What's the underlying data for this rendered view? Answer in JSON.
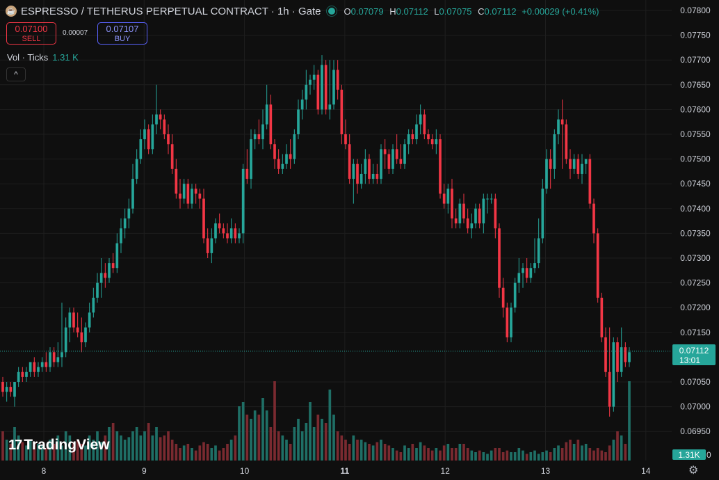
{
  "header": {
    "symbol": "ESPRESSO / TETHERUS PERPETUAL CONTRACT · 1h · Gate",
    "logo_icon": "espresso-coin-icon",
    "o_label": "O",
    "o": "0.07079",
    "h_label": "H",
    "h": "0.07112",
    "l_label": "L",
    "l": "0.07075",
    "c_label": "C",
    "c": "0.07112",
    "change": "+0.00029 (+0.41%)"
  },
  "trade": {
    "sell_price": "0.07100",
    "sell_label": "SELL",
    "spread": "0.00007",
    "buy_price": "0.07107",
    "buy_label": "BUY"
  },
  "volume": {
    "label": "Vol · Ticks",
    "value": "1.31 K"
  },
  "collapse_glyph": "^",
  "brand": {
    "text": "TradingView",
    "mark": "17"
  },
  "settings_icon": "gear-icon",
  "colors": {
    "up": "#26a69a",
    "down": "#f23645",
    "bg": "#0f0f0f"
  },
  "chart_data": {
    "type": "candlestick",
    "y_axis_ticks": [
      "0.07800",
      "0.07750",
      "0.07700",
      "0.07650",
      "0.07600",
      "0.07550",
      "0.07500",
      "0.07450",
      "0.07400",
      "0.07350",
      "0.07300",
      "0.07250",
      "0.07200",
      "0.07150",
      "0.07050",
      "0.07000",
      "0.06950"
    ],
    "ylim": [
      0.0693,
      0.0781
    ],
    "x_axis_ticks": [
      "8",
      "9",
      "10",
      "11",
      "12",
      "13",
      "14"
    ],
    "x_bold_tick": "11",
    "last_price": "0.07112",
    "countdown": "13:01",
    "volume_last": "1.31K",
    "volume_zero_label": "0",
    "ohlc": [
      [
        0.0705,
        0.0706,
        0.0702,
        0.0703
      ],
      [
        0.0703,
        0.0705,
        0.0701,
        0.0704
      ],
      [
        0.0704,
        0.0705,
        0.0702,
        0.0703
      ],
      [
        0.0702,
        0.0705,
        0.07,
        0.0705
      ],
      [
        0.0705,
        0.0708,
        0.0704,
        0.0707
      ],
      [
        0.0707,
        0.0708,
        0.0705,
        0.0706
      ],
      [
        0.0706,
        0.0708,
        0.0705,
        0.0707
      ],
      [
        0.0707,
        0.0709,
        0.0706,
        0.0709
      ],
      [
        0.0709,
        0.071,
        0.0706,
        0.0707
      ],
      [
        0.0707,
        0.0709,
        0.0706,
        0.0708
      ],
      [
        0.0708,
        0.071,
        0.0707,
        0.0709
      ],
      [
        0.0709,
        0.0711,
        0.0707,
        0.0708
      ],
      [
        0.0708,
        0.0712,
        0.0707,
        0.0711
      ],
      [
        0.0711,
        0.0712,
        0.0708,
        0.0709
      ],
      [
        0.0709,
        0.0713,
        0.0708,
        0.071
      ],
      [
        0.071,
        0.0721,
        0.0708,
        0.0711
      ],
      [
        0.0711,
        0.0718,
        0.071,
        0.0716
      ],
      [
        0.0716,
        0.072,
        0.0713,
        0.0719
      ],
      [
        0.0719,
        0.072,
        0.0715,
        0.0716
      ],
      [
        0.0716,
        0.0719,
        0.0714,
        0.0715
      ],
      [
        0.0715,
        0.0718,
        0.0711,
        0.0713
      ],
      [
        0.0713,
        0.0717,
        0.0712,
        0.0716
      ],
      [
        0.0716,
        0.0721,
        0.0715,
        0.0719
      ],
      [
        0.0719,
        0.0724,
        0.0718,
        0.0722
      ],
      [
        0.0722,
        0.0727,
        0.0721,
        0.0725
      ],
      [
        0.0725,
        0.073,
        0.0722,
        0.0727
      ],
      [
        0.0727,
        0.0729,
        0.0724,
        0.0726
      ],
      [
        0.0726,
        0.073,
        0.0725,
        0.0729
      ],
      [
        0.0729,
        0.0731,
        0.0727,
        0.0728
      ],
      [
        0.0728,
        0.0735,
        0.0727,
        0.0733
      ],
      [
        0.0733,
        0.0738,
        0.0731,
        0.0736
      ],
      [
        0.0736,
        0.074,
        0.0734,
        0.0738
      ],
      [
        0.0738,
        0.0742,
        0.0736,
        0.074
      ],
      [
        0.074,
        0.0749,
        0.0739,
        0.0746
      ],
      [
        0.0746,
        0.0752,
        0.0745,
        0.075
      ],
      [
        0.075,
        0.0756,
        0.0749,
        0.0754
      ],
      [
        0.0754,
        0.0758,
        0.0752,
        0.0756
      ],
      [
        0.0756,
        0.0757,
        0.0751,
        0.0752
      ],
      [
        0.0752,
        0.0759,
        0.0751,
        0.0757
      ],
      [
        0.0757,
        0.0765,
        0.0755,
        0.0759
      ],
      [
        0.0759,
        0.076,
        0.0756,
        0.0758
      ],
      [
        0.0758,
        0.0759,
        0.0754,
        0.0755
      ],
      [
        0.0755,
        0.0757,
        0.0751,
        0.0753
      ],
      [
        0.0753,
        0.0755,
        0.0747,
        0.0748
      ],
      [
        0.0748,
        0.075,
        0.0742,
        0.0743
      ],
      [
        0.0743,
        0.0746,
        0.074,
        0.0742
      ],
      [
        0.0742,
        0.0746,
        0.0741,
        0.0745
      ],
      [
        0.0745,
        0.0746,
        0.074,
        0.0741
      ],
      [
        0.0741,
        0.0745,
        0.074,
        0.0744
      ],
      [
        0.0744,
        0.0745,
        0.0741,
        0.0743
      ],
      [
        0.0743,
        0.0744,
        0.074,
        0.0742
      ],
      [
        0.0742,
        0.0744,
        0.0733,
        0.0734
      ],
      [
        0.0734,
        0.0736,
        0.073,
        0.0731
      ],
      [
        0.0731,
        0.0736,
        0.0729,
        0.0734
      ],
      [
        0.0734,
        0.0738,
        0.0733,
        0.0737
      ],
      [
        0.0737,
        0.0739,
        0.0735,
        0.0736
      ],
      [
        0.0736,
        0.0737,
        0.0734,
        0.0735
      ],
      [
        0.0735,
        0.0737,
        0.0733,
        0.0734
      ],
      [
        0.0734,
        0.0738,
        0.0733,
        0.0736
      ],
      [
        0.0736,
        0.0737,
        0.0733,
        0.0734
      ],
      [
        0.0734,
        0.0736,
        0.0733,
        0.0735
      ],
      [
        0.0735,
        0.0749,
        0.0733,
        0.0748
      ],
      [
        0.0748,
        0.0752,
        0.0745,
        0.0746
      ],
      [
        0.0746,
        0.0756,
        0.0744,
        0.0754
      ],
      [
        0.0754,
        0.0756,
        0.0752,
        0.0755
      ],
      [
        0.0755,
        0.0758,
        0.0753,
        0.0754
      ],
      [
        0.0754,
        0.076,
        0.0752,
        0.0757
      ],
      [
        0.0757,
        0.0765,
        0.0756,
        0.0761
      ],
      [
        0.0761,
        0.0763,
        0.0752,
        0.0753
      ],
      [
        0.0753,
        0.0754,
        0.0748,
        0.075
      ],
      [
        0.075,
        0.0752,
        0.0747,
        0.0748
      ],
      [
        0.0748,
        0.0751,
        0.0747,
        0.0749
      ],
      [
        0.0749,
        0.0753,
        0.0748,
        0.0751
      ],
      [
        0.0751,
        0.0754,
        0.0748,
        0.075
      ],
      [
        0.075,
        0.0756,
        0.0749,
        0.0755
      ],
      [
        0.0755,
        0.0762,
        0.0754,
        0.076
      ],
      [
        0.076,
        0.0764,
        0.0758,
        0.0762
      ],
      [
        0.0762,
        0.0768,
        0.076,
        0.0765
      ],
      [
        0.0765,
        0.0767,
        0.0763,
        0.0766
      ],
      [
        0.0766,
        0.0769,
        0.0764,
        0.0767
      ],
      [
        0.0767,
        0.0768,
        0.0759,
        0.076
      ],
      [
        0.076,
        0.0771,
        0.0759,
        0.0769
      ],
      [
        0.0769,
        0.077,
        0.0759,
        0.076
      ],
      [
        0.076,
        0.077,
        0.0758,
        0.0761
      ],
      [
        0.0761,
        0.077,
        0.076,
        0.0768
      ],
      [
        0.0768,
        0.077,
        0.0762,
        0.0764
      ],
      [
        0.0764,
        0.0765,
        0.0753,
        0.0755
      ],
      [
        0.0755,
        0.0758,
        0.0752,
        0.0753
      ],
      [
        0.0753,
        0.0755,
        0.0745,
        0.0746
      ],
      [
        0.0746,
        0.075,
        0.0741,
        0.0749
      ],
      [
        0.0749,
        0.075,
        0.0743,
        0.0745
      ],
      [
        0.0745,
        0.0749,
        0.0744,
        0.0747
      ],
      [
        0.0747,
        0.0752,
        0.0745,
        0.075
      ],
      [
        0.075,
        0.0751,
        0.0745,
        0.0746
      ],
      [
        0.0746,
        0.0749,
        0.0745,
        0.0747
      ],
      [
        0.0747,
        0.0749,
        0.0745,
        0.0746
      ],
      [
        0.0746,
        0.0753,
        0.0745,
        0.0752
      ],
      [
        0.0752,
        0.0754,
        0.0748,
        0.0751
      ],
      [
        0.0751,
        0.0752,
        0.0747,
        0.0748
      ],
      [
        0.0748,
        0.0753,
        0.0747,
        0.0752
      ],
      [
        0.0752,
        0.0755,
        0.0749,
        0.075
      ],
      [
        0.075,
        0.0753,
        0.0748,
        0.0749
      ],
      [
        0.0749,
        0.0754,
        0.0748,
        0.0753
      ],
      [
        0.0753,
        0.0756,
        0.0751,
        0.0755
      ],
      [
        0.0755,
        0.0756,
        0.0753,
        0.0754
      ],
      [
        0.0754,
        0.0759,
        0.0753,
        0.0757
      ],
      [
        0.0757,
        0.0761,
        0.0755,
        0.0759
      ],
      [
        0.0759,
        0.076,
        0.0754,
        0.0755
      ],
      [
        0.0755,
        0.0756,
        0.0753,
        0.0754
      ],
      [
        0.0754,
        0.0755,
        0.0752,
        0.0753
      ],
      [
        0.0753,
        0.0756,
        0.0751,
        0.0754
      ],
      [
        0.0754,
        0.0755,
        0.0742,
        0.0743
      ],
      [
        0.0743,
        0.0745,
        0.074,
        0.0741
      ],
      [
        0.0741,
        0.0745,
        0.0739,
        0.0744
      ],
      [
        0.0744,
        0.0746,
        0.0736,
        0.0738
      ],
      [
        0.0738,
        0.074,
        0.0736,
        0.0737
      ],
      [
        0.0737,
        0.0742,
        0.0736,
        0.0741
      ],
      [
        0.0741,
        0.0743,
        0.0737,
        0.0738
      ],
      [
        0.0738,
        0.074,
        0.0735,
        0.0736
      ],
      [
        0.0736,
        0.0739,
        0.0734,
        0.0737
      ],
      [
        0.0737,
        0.0741,
        0.0736,
        0.074
      ],
      [
        0.074,
        0.0741,
        0.0736,
        0.0737
      ],
      [
        0.0737,
        0.0743,
        0.0735,
        0.0742
      ],
      [
        0.0742,
        0.0743,
        0.0739,
        0.0742
      ],
      [
        0.0742,
        0.0743,
        0.0741,
        0.0742
      ],
      [
        0.0742,
        0.0743,
        0.0734,
        0.0736
      ],
      [
        0.0736,
        0.0737,
        0.0722,
        0.0724
      ],
      [
        0.0724,
        0.0726,
        0.0718,
        0.072
      ],
      [
        0.072,
        0.0721,
        0.0713,
        0.0714
      ],
      [
        0.0714,
        0.0721,
        0.0713,
        0.072
      ],
      [
        0.072,
        0.0726,
        0.0719,
        0.0725
      ],
      [
        0.0725,
        0.073,
        0.0723,
        0.0727
      ],
      [
        0.0727,
        0.0729,
        0.0724,
        0.0728
      ],
      [
        0.0728,
        0.073,
        0.0725,
        0.0726
      ],
      [
        0.0726,
        0.0729,
        0.0725,
        0.0728
      ],
      [
        0.0728,
        0.0734,
        0.0727,
        0.0729
      ],
      [
        0.0729,
        0.0738,
        0.0728,
        0.0734
      ],
      [
        0.0734,
        0.0746,
        0.0733,
        0.0744
      ],
      [
        0.0744,
        0.0752,
        0.0743,
        0.075
      ],
      [
        0.075,
        0.0752,
        0.0744,
        0.0748
      ],
      [
        0.0748,
        0.0756,
        0.0746,
        0.0755
      ],
      [
        0.0755,
        0.076,
        0.0753,
        0.0758
      ],
      [
        0.0758,
        0.0762,
        0.0748,
        0.0757
      ],
      [
        0.0757,
        0.0758,
        0.0749,
        0.075
      ],
      [
        0.075,
        0.0752,
        0.0746,
        0.0748
      ],
      [
        0.0748,
        0.0751,
        0.0747,
        0.075
      ],
      [
        0.075,
        0.0751,
        0.0746,
        0.0747
      ],
      [
        0.0747,
        0.0751,
        0.0745,
        0.0749
      ],
      [
        0.0749,
        0.075,
        0.0747,
        0.075
      ],
      [
        0.075,
        0.0751,
        0.074,
        0.0741
      ],
      [
        0.0741,
        0.0742,
        0.0733,
        0.0735
      ],
      [
        0.0735,
        0.0736,
        0.0721,
        0.0722
      ],
      [
        0.0722,
        0.0723,
        0.0713,
        0.0714
      ],
      [
        0.0714,
        0.0716,
        0.0706,
        0.0707
      ],
      [
        0.0707,
        0.0716,
        0.0698,
        0.07
      ],
      [
        0.07,
        0.0714,
        0.0699,
        0.0713
      ],
      [
        0.0713,
        0.0714,
        0.0705,
        0.0707
      ],
      [
        0.0707,
        0.0716,
        0.0706,
        0.0712
      ],
      [
        0.0712,
        0.0713,
        0.0708,
        0.0709
      ],
      [
        0.0709,
        0.0712,
        0.0708,
        0.0711
      ]
    ],
    "volume": [
      0.35,
      0.25,
      0.2,
      0.4,
      0.3,
      0.22,
      0.18,
      0.25,
      0.22,
      0.2,
      0.18,
      0.15,
      0.25,
      0.2,
      0.3,
      0.18,
      0.35,
      0.3,
      0.22,
      0.25,
      0.2,
      0.18,
      0.3,
      0.25,
      0.35,
      0.22,
      0.3,
      0.4,
      0.45,
      0.35,
      0.3,
      0.25,
      0.28,
      0.35,
      0.4,
      0.3,
      0.35,
      0.45,
      0.3,
      0.4,
      0.28,
      0.3,
      0.35,
      0.25,
      0.2,
      0.15,
      0.18,
      0.2,
      0.15,
      0.12,
      0.18,
      0.22,
      0.2,
      0.15,
      0.18,
      0.12,
      0.15,
      0.2,
      0.25,
      0.3,
      0.65,
      0.7,
      0.55,
      0.5,
      0.6,
      0.55,
      0.75,
      0.6,
      0.4,
      0.95,
      0.35,
      0.3,
      0.25,
      0.2,
      0.4,
      0.5,
      0.35,
      0.45,
      0.7,
      0.4,
      0.55,
      0.5,
      0.45,
      0.85,
      0.55,
      0.35,
      0.3,
      0.25,
      0.2,
      0.3,
      0.25,
      0.25,
      0.22,
      0.2,
      0.18,
      0.22,
      0.25,
      0.2,
      0.18,
      0.15,
      0.12,
      0.1,
      0.18,
      0.15,
      0.2,
      0.15,
      0.22,
      0.18,
      0.15,
      0.12,
      0.15,
      0.12,
      0.18,
      0.2,
      0.15,
      0.15,
      0.2,
      0.2,
      0.15,
      0.12,
      0.1,
      0.12,
      0.1,
      0.08,
      0.12,
      0.15,
      0.15,
      0.1,
      0.12,
      0.1,
      0.1,
      0.15,
      0.12,
      0.08,
      0.1,
      0.12,
      0.08,
      0.1,
      0.12,
      0.1,
      0.15,
      0.18,
      0.15,
      0.22,
      0.25,
      0.2,
      0.25,
      0.18,
      0.2,
      0.15,
      0.12,
      0.15,
      0.12,
      0.1,
      0.18,
      0.25,
      0.35,
      0.3,
      0.2,
      0.95,
      0.4,
      0.25,
      0.1
    ]
  }
}
